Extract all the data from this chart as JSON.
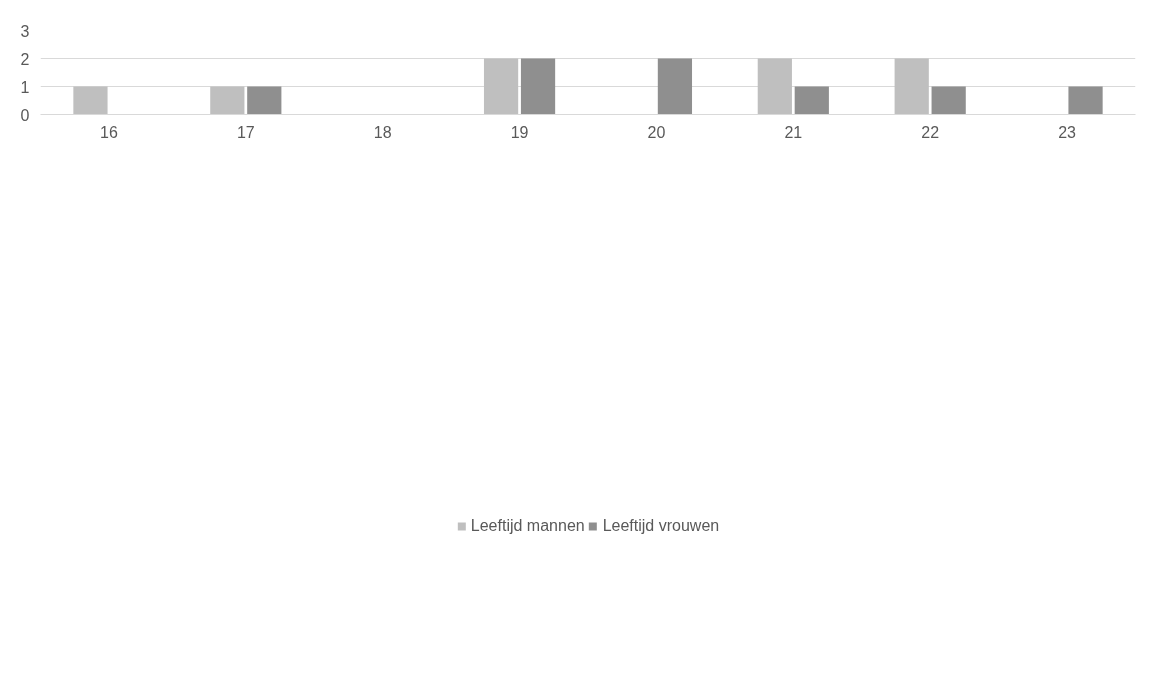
{
  "chart_data": {
    "type": "bar",
    "categories": [
      "16",
      "17",
      "18",
      "19",
      "20",
      "21",
      "22",
      "23"
    ],
    "series": [
      {
        "name": "Leeftijd mannen",
        "color": "#bfbfbf",
        "values": [
          1,
          1,
          0,
          2,
          0,
          2,
          2,
          0
        ]
      },
      {
        "name": "Leeftijd vrouwen",
        "color": "#8f8f8f",
        "values": [
          0,
          1,
          0,
          2,
          2,
          1,
          1,
          1
        ]
      }
    ],
    "ylim": [
      0,
      3
    ],
    "yticks": [
      0,
      1,
      2,
      3
    ],
    "grid": "y",
    "legend": "bottom"
  }
}
